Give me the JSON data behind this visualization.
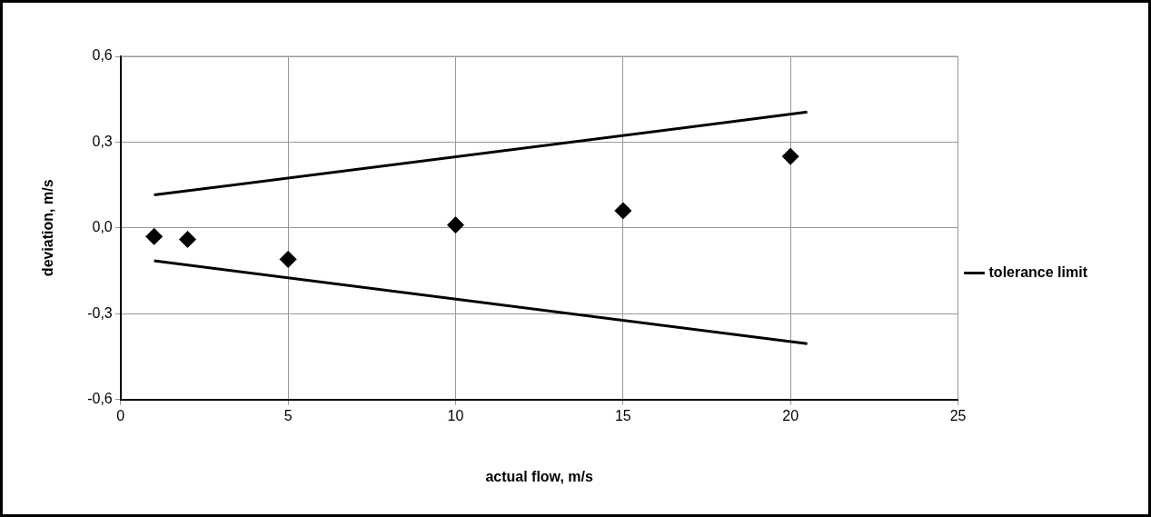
{
  "chart_data": {
    "type": "scatter",
    "xlabel": "actual flow, m/s",
    "ylabel": "deviation, m/s",
    "xlim": [
      0,
      25
    ],
    "xticks": [
      0,
      5,
      10,
      15,
      20,
      25
    ],
    "ylim": [
      -0.6,
      0.6
    ],
    "yticks": [
      {
        "value": -0.6,
        "label": "-0,6"
      },
      {
        "value": -0.3,
        "label": "-0,3"
      },
      {
        "value": 0,
        "label": "0,0"
      },
      {
        "value": 0.3,
        "label": "0,3"
      },
      {
        "value": 0.6,
        "label": "0,6"
      }
    ],
    "grid": true,
    "legend": "right",
    "marker": "diamond",
    "series": [
      {
        "color": "#000000",
        "x": [
          1,
          2,
          5,
          10,
          15,
          20
        ],
        "values": [
          -0.03,
          -0.04,
          -0.11,
          0.01,
          0.06,
          0.25
        ]
      },
      {
        "type": "line",
        "name": "tolerance limit",
        "color": "#000000",
        "x": [
          1,
          20.5
        ],
        "values": [
          0.115,
          0.405
        ],
        "marker": "none",
        "line_style": "solid"
      },
      {
        "type": "line",
        "color": "#000000",
        "x": [
          1,
          20.5
        ],
        "values": [
          -0.115,
          -0.405
        ],
        "marker": "none",
        "line_style": "solid"
      }
    ]
  }
}
